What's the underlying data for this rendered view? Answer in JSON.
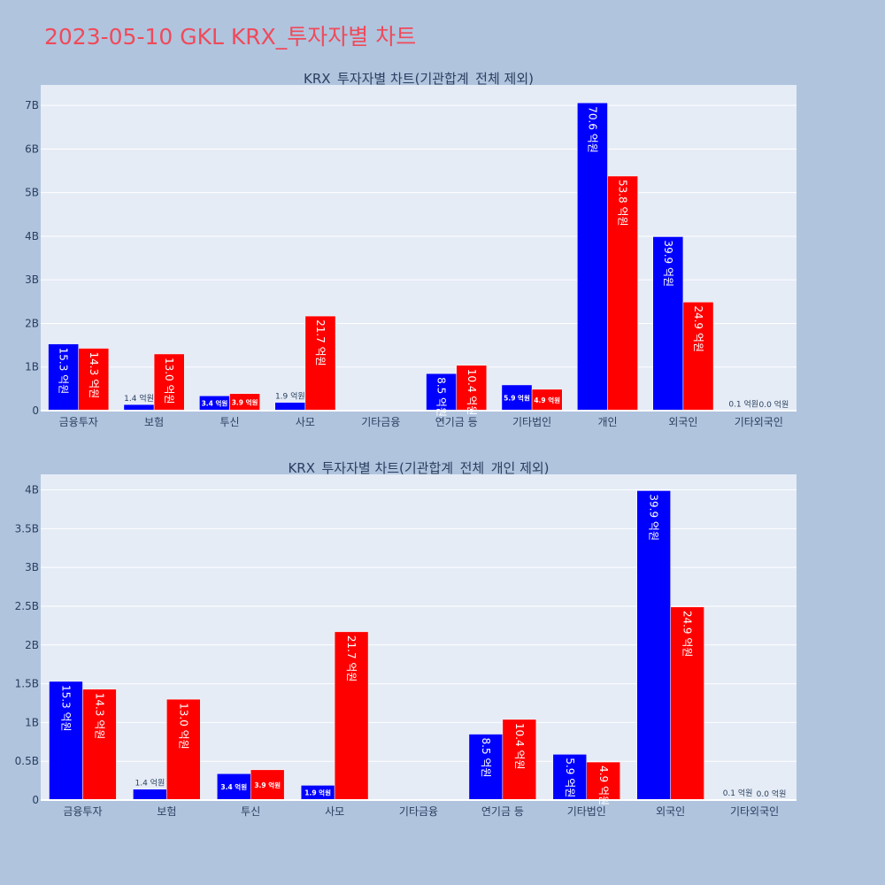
{
  "page": {
    "title": "2023-05-10 GKL KRX_투자자별 차트",
    "colors": {
      "background": "#b0c4de",
      "plot_bg": "#e5ecf6",
      "grid": "#ffffff",
      "title": "#ef4a5a",
      "text": "#2a3f5f",
      "series_a": "#0000ff",
      "series_b": "#ff0000"
    }
  },
  "chart_data": [
    {
      "type": "bar",
      "title": "KRX_투자자별 차트(기관합계_전체 제외)",
      "categories": [
        "금융투자",
        "보험",
        "투신",
        "사모",
        "기타금융",
        "연기금 등",
        "기타법인",
        "개인",
        "외국인",
        "기타외국인"
      ],
      "series": [
        {
          "color": "#0000ff",
          "values": [
            1530000000,
            140000000,
            340000000,
            190000000,
            0,
            850000000,
            590000000,
            7060000000,
            3990000000,
            10000000
          ],
          "labels": [
            "15.3 억원",
            "1.4 억원",
            "3.4 억원",
            "1.9 억원",
            "",
            "8.5 억원",
            "5.9 억원",
            "70.6 억원",
            "39.9 억원",
            "0.1 억원"
          ]
        },
        {
          "color": "#ff0000",
          "values": [
            1430000000,
            1300000000,
            390000000,
            2170000000,
            0,
            1040000000,
            490000000,
            5380000000,
            2490000000,
            0
          ],
          "labels": [
            "14.3 억원",
            "13.0 억원",
            "3.9 억원",
            "21.7 억원",
            "",
            "10.4 억원",
            "4.9 억원",
            "53.8 억원",
            "24.9 억원",
            "0.0 억원"
          ]
        }
      ],
      "yticks": [
        0,
        1000000000,
        2000000000,
        3000000000,
        4000000000,
        5000000000,
        6000000000,
        7000000000
      ],
      "ytick_labels": [
        "0",
        "1B",
        "2B",
        "3B",
        "4B",
        "5B",
        "6B",
        "7B"
      ],
      "ylim": [
        0,
        7470000000
      ],
      "grid": true,
      "legend": "none"
    },
    {
      "type": "bar",
      "title": "KRX_투자자별 차트(기관합계_전체_개인 제외)",
      "categories": [
        "금융투자",
        "보험",
        "투신",
        "사모",
        "기타금융",
        "연기금 등",
        "기타법인",
        "외국인",
        "기타외국인"
      ],
      "series": [
        {
          "color": "#0000ff",
          "values": [
            1530000000,
            140000000,
            340000000,
            190000000,
            0,
            850000000,
            590000000,
            3990000000,
            10000000
          ],
          "labels": [
            "15.3 억원",
            "1.4 억원",
            "3.4 억원",
            "1.9 억원",
            "",
            "8.5 억원",
            "5.9 억원",
            "39.9 억원",
            "0.1 억원"
          ]
        },
        {
          "color": "#ff0000",
          "values": [
            1430000000,
            1300000000,
            390000000,
            2170000000,
            0,
            1040000000,
            490000000,
            2490000000,
            0
          ],
          "labels": [
            "14.3 억원",
            "13.0 억원",
            "3.9 억원",
            "21.7 억원",
            "",
            "10.4 억원",
            "4.9 억원",
            "24.9 억원",
            "0.0 억원"
          ]
        }
      ],
      "yticks": [
        0,
        500000000,
        1000000000,
        1500000000,
        2000000000,
        2500000000,
        3000000000,
        3500000000,
        4000000000
      ],
      "ytick_labels": [
        "0",
        "0.5B",
        "1B",
        "1.5B",
        "2B",
        "2.5B",
        "3B",
        "3.5B",
        "4B"
      ],
      "ylim": [
        0,
        4200000000
      ],
      "grid": true,
      "legend": "none"
    }
  ]
}
